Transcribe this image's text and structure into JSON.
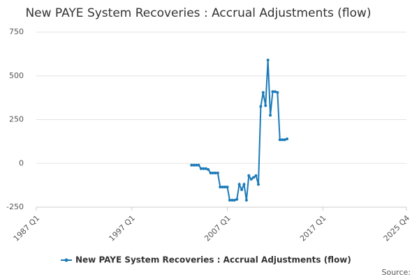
{
  "chart_data": {
    "type": "line",
    "title": "New PAYE System Recoveries : Accrual Adjustments (flow)",
    "source": "Source:",
    "x": [
      "2003 Q2",
      "2003 Q3",
      "2003 Q4",
      "2004 Q1",
      "2004 Q2",
      "2004 Q3",
      "2004 Q4",
      "2005 Q1",
      "2005 Q2",
      "2005 Q3",
      "2005 Q4",
      "2006 Q1",
      "2006 Q2",
      "2006 Q3",
      "2006 Q4",
      "2007 Q1",
      "2007 Q2",
      "2007 Q3",
      "2007 Q4",
      "2008 Q1",
      "2008 Q2",
      "2008 Q3",
      "2008 Q4",
      "2009 Q1",
      "2009 Q2",
      "2009 Q3",
      "2009 Q4",
      "2010 Q1",
      "2010 Q2",
      "2010 Q3",
      "2010 Q4",
      "2011 Q1",
      "2011 Q2",
      "2011 Q3",
      "2011 Q4",
      "2012 Q1",
      "2012 Q2",
      "2012 Q3",
      "2012 Q4",
      "2013 Q1",
      "2013 Q2"
    ],
    "series": [
      {
        "name": "New PAYE System Recoveries : Accrual Adjustments (flow)",
        "color": "#1a7ab8",
        "values": [
          -10,
          -10,
          -10,
          -10,
          -30,
          -30,
          -30,
          -35,
          -55,
          -55,
          -55,
          -55,
          -135,
          -135,
          -135,
          -135,
          -210,
          -210,
          -210,
          -205,
          -120,
          -150,
          -120,
          -210,
          -70,
          -90,
          -80,
          -70,
          -120,
          325,
          405,
          330,
          590,
          275,
          410,
          410,
          405,
          135,
          135,
          135,
          140
        ]
      }
    ],
    "xlim": [
      "1987 Q1",
      "2025 Q4"
    ],
    "xticks": [
      "1987 Q1",
      "1997 Q1",
      "2007 Q1",
      "2017 Q1",
      "2025 Q4"
    ],
    "ylim": [
      -250,
      750
    ],
    "yticks": [
      -250,
      0,
      250,
      500,
      750
    ],
    "grid": true,
    "legend": "bottom"
  }
}
